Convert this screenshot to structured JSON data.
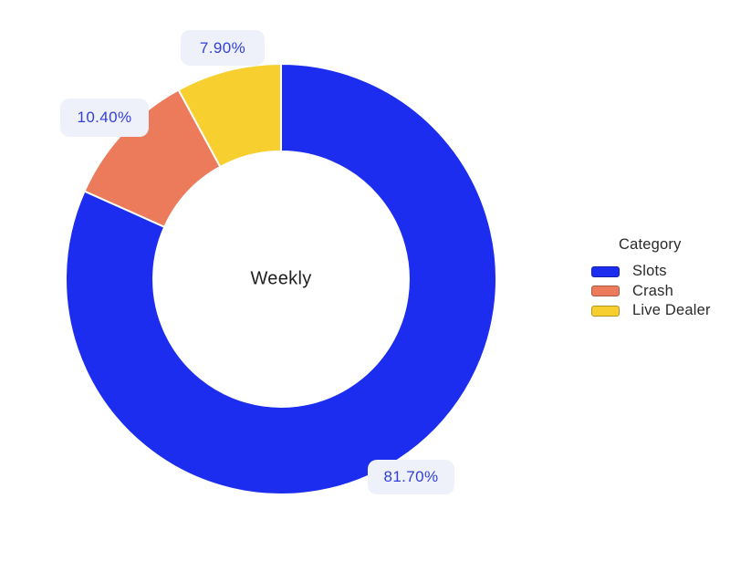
{
  "chart_data": {
    "type": "pie",
    "subtype": "donut",
    "center_label": "Weekly",
    "categories": [
      "Slots",
      "Crash",
      "Live Dealer"
    ],
    "values": [
      81.7,
      10.4,
      7.9
    ],
    "value_labels": [
      "81.70%",
      "10.40%",
      "7.90%"
    ],
    "colors": [
      "#1c2df0",
      "#ec7b5c",
      "#f7cf2f"
    ],
    "hole": 0.593,
    "rotation_deg": 0,
    "direction": "clockwise",
    "legend_title": "Category",
    "legend_position": "right",
    "label_bg_color": "#eef1f9",
    "label_text_color": "#3340d8",
    "slice_border_color": "#ffffff"
  }
}
